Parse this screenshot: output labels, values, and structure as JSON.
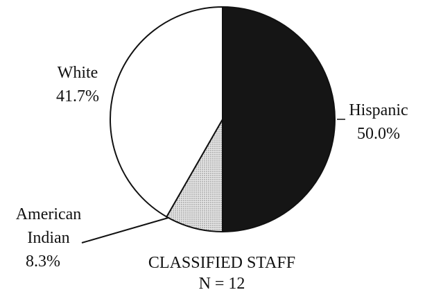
{
  "chart_data": {
    "type": "pie",
    "title": "CLASSIFIED STAFF",
    "subtitle": "N = 12",
    "categories": [
      "Hispanic",
      "American Indian",
      "White"
    ],
    "values": [
      50.0,
      8.3,
      41.7
    ],
    "value_labels": [
      "50.0%",
      "8.3%",
      "41.7%"
    ],
    "colors": [
      "#151515",
      "#cfcfcf",
      "#ffffff"
    ]
  }
}
